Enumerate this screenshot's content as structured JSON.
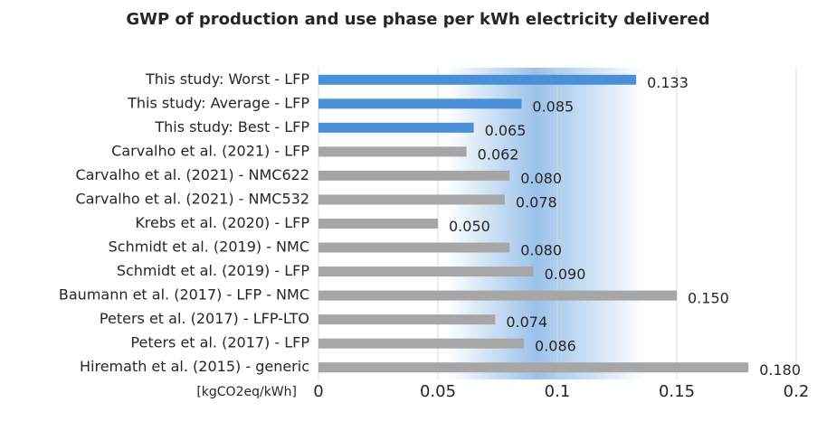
{
  "chart_data": {
    "type": "hbar",
    "title": "GWP of production and use phase per kWh electricity delivered",
    "x_label": "[kgCO2eq/kWh]",
    "categories": [
      "This study: Worst - LFP",
      "This study: Average - LFP",
      "This study: Best - LFP",
      "Carvalho et al. (2021) - LFP",
      "Carvalho et al. (2021) - NMC622",
      "Carvalho et al. (2021) - NMC532",
      "Krebs et al. (2020) - LFP",
      "Schmidt et al. (2019) - NMC",
      "Schmidt et al. (2019) - LFP",
      "Baumann et al. (2017) - LFP - NMC",
      "Peters et al. (2017) - LFP-LTO",
      "Peters et al. (2017) - LFP",
      "Hiremath et al. (2015) - generic"
    ],
    "values": [
      0.133,
      0.085,
      0.065,
      0.062,
      0.08,
      0.078,
      0.05,
      0.08,
      0.09,
      0.15,
      0.074,
      0.086,
      0.18
    ],
    "value_labels": [
      "0.133",
      "0.085",
      "0.065",
      "0.062",
      "0.080",
      "0.078",
      "0.050",
      "0.080",
      "0.090",
      "0.150",
      "0.074",
      "0.086",
      "0.180"
    ],
    "colors": [
      "#4a90d9",
      "#4a90d9",
      "#4a90d9",
      "#a6a6a6",
      "#a6a6a6",
      "#a6a6a6",
      "#a6a6a6",
      "#a6a6a6",
      "#a6a6a6",
      "#a6a6a6",
      "#a6a6a6",
      "#a6a6a6",
      "#a6a6a6"
    ],
    "xlim": [
      0,
      0.2
    ],
    "xticks": [
      0,
      0.05,
      0.1,
      0.15,
      0.2
    ],
    "grid": true
  }
}
